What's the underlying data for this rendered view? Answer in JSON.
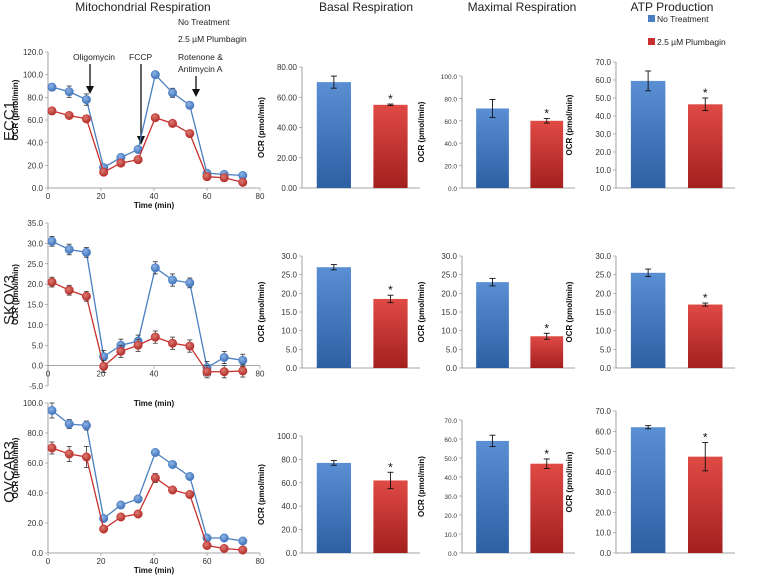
{
  "column_titles": {
    "mito": "Mitochondrial Respiration",
    "basal": "Basal Respiration",
    "maximal": "Maximal Respiration",
    "atp": "ATP Production"
  },
  "legend": {
    "no_treatment": "No Treatment",
    "plumbagin": "2.5 µM Plumbagin",
    "colors": {
      "no_treatment": "#4a7fc1",
      "plumbagin": "#c8302f"
    }
  },
  "annotations": {
    "no_treatment": "No Treatment",
    "plumbagin": "2.5 µM Plumbagin",
    "oligomycin": "Oligomycin",
    "fccp": "FCCP",
    "rotenone_line1": "Rotenone &",
    "rotenone_line2": "Antimycin A"
  },
  "significance_marker": "*",
  "chart_data": [
    {
      "type": "line",
      "row": "ECC1",
      "title": "Mitochondrial Respiration",
      "xlabel": "Time (min)",
      "ylabel": "OCR (pmol/min)",
      "xlim": [
        0,
        80
      ],
      "ylim": [
        0,
        120
      ],
      "xticks": [
        "0",
        "20",
        "40",
        "60",
        "80"
      ],
      "yticks": [
        "0.0",
        "20.0",
        "40.0",
        "60.0",
        "80.0",
        "100.0",
        "120.0"
      ],
      "x": [
        1.5,
        8,
        14.5,
        21,
        27.5,
        34,
        40.5,
        47,
        53.5,
        60,
        66.5,
        73.5
      ],
      "series": [
        {
          "name": "No Treatment",
          "values": [
            89,
            85,
            78,
            18,
            27,
            34,
            100,
            84,
            73,
            13,
            12,
            11
          ],
          "err": [
            3,
            5,
            5,
            2,
            2,
            2,
            2,
            4,
            3,
            2,
            2,
            2
          ]
        },
        {
          "name": "2.5 µM Plumbagin",
          "values": [
            68,
            64,
            61,
            14,
            22,
            25,
            62,
            57,
            48,
            10,
            9,
            5
          ],
          "err": [
            2,
            2,
            2,
            2,
            2,
            2,
            2,
            2,
            3,
            2,
            2,
            2
          ]
        }
      ]
    },
    {
      "type": "bar",
      "row": "ECC1",
      "title": "Basal Respiration",
      "ylabel": "OCR (pmol/min)",
      "ylim": [
        0,
        80
      ],
      "yticks": [
        "0.00",
        "20.00",
        "40.00",
        "60.00",
        "80.00"
      ],
      "categories": [
        "No Treatment",
        "2.5 µM Plumbagin"
      ],
      "values": [
        70,
        55
      ],
      "err": [
        4,
        0.5
      ],
      "significant": [
        false,
        true
      ]
    },
    {
      "type": "bar",
      "row": "ECC1",
      "title": "Maximal Respiration",
      "ylabel": "OCR (pmol/min)",
      "ylim": [
        0,
        100
      ],
      "yticks": [
        "0.0",
        "20.0",
        "40.0",
        "60.0",
        "80.0",
        "100.0"
      ],
      "categories": [
        "No Treatment",
        "2.5 µM Plumbagin"
      ],
      "values": [
        71,
        60
      ],
      "err": [
        8,
        2
      ],
      "significant": [
        false,
        true
      ]
    },
    {
      "type": "bar",
      "row": "ECC1",
      "title": "ATP Production",
      "ylabel": "OCR (pmol/min)",
      "ylim": [
        0,
        70
      ],
      "yticks": [
        "0.0",
        "10.0",
        "20.0",
        "30.0",
        "40.0",
        "50.0",
        "60.0",
        "70.0"
      ],
      "categories": [
        "No Treatment",
        "2.5 µM Plumbagin"
      ],
      "values": [
        59.5,
        46.5
      ],
      "err": [
        5.5,
        3.5
      ],
      "significant": [
        false,
        true
      ]
    },
    {
      "type": "line",
      "row": "SKOV3",
      "xlabel": "Time (min)",
      "ylabel": "OCR (pmol/min)",
      "xlim": [
        0,
        80
      ],
      "ylim": [
        -5,
        35
      ],
      "xticks": [
        "0",
        "20",
        "40",
        "60",
        "80"
      ],
      "yticks": [
        "-5.0",
        "0.0",
        "5.0",
        "10.0",
        "15.0",
        "20.0",
        "25.0",
        "30.0",
        "35.0"
      ],
      "x": [
        1.5,
        8,
        14.5,
        21,
        27.5,
        34,
        40.5,
        47,
        53.5,
        60,
        66.5,
        73.5
      ],
      "series": [
        {
          "name": "No Treatment",
          "values": [
            30.5,
            28.5,
            27.8,
            2.2,
            5,
            6,
            24,
            21,
            20.3,
            -0.5,
            2,
            1.3
          ],
          "err": [
            1.2,
            1.3,
            1.2,
            1.5,
            1.5,
            1.5,
            1.5,
            1.5,
            1.2,
            1.5,
            1.5,
            1.5
          ]
        },
        {
          "name": "2.5 µM Plumbagin",
          "values": [
            20.5,
            18.5,
            17,
            -0.2,
            3.5,
            5,
            7,
            5.5,
            4.8,
            -1.5,
            -1.5,
            -1.3
          ],
          "err": [
            1.2,
            1.2,
            1.2,
            1.5,
            1.5,
            1.5,
            1.5,
            1.5,
            1.5,
            1.5,
            1.5,
            1.5
          ]
        }
      ]
    },
    {
      "type": "bar",
      "row": "SKOV3",
      "ylabel": "OCR (pmol/min)",
      "ylim": [
        0,
        30
      ],
      "yticks": [
        "0.0",
        "5.0",
        "10.0",
        "15.0",
        "20.0",
        "25.0",
        "30.0"
      ],
      "categories": [
        "No Treatment",
        "2.5 µM Plumbagin"
      ],
      "values": [
        27,
        18.5
      ],
      "err": [
        0.7,
        1
      ],
      "significant": [
        false,
        true
      ]
    },
    {
      "type": "bar",
      "row": "SKOV3",
      "ylabel": "OCR (pmol/min)",
      "ylim": [
        0,
        30
      ],
      "yticks": [
        "0.0",
        "5.0",
        "10.0",
        "15.0",
        "20.0",
        "25.0",
        "30.0"
      ],
      "categories": [
        "No Treatment",
        "2.5 µM Plumbagin"
      ],
      "values": [
        23,
        8.5
      ],
      "err": [
        1,
        0.8
      ],
      "significant": [
        false,
        true
      ]
    },
    {
      "type": "bar",
      "row": "SKOV3",
      "ylabel": "OCR (pmol/min)",
      "ylim": [
        0,
        30
      ],
      "yticks": [
        "0.0",
        "5.0",
        "10.0",
        "15.0",
        "20.0",
        "25.0",
        "30.0"
      ],
      "categories": [
        "No Treatment",
        "2.5 µM Plumbagin"
      ],
      "values": [
        25.5,
        17
      ],
      "err": [
        1,
        0.4
      ],
      "significant": [
        false,
        true
      ]
    },
    {
      "type": "line",
      "row": "OVCAR3",
      "xlabel": "Time (min)",
      "ylabel": "OCR (pmol/min)",
      "xlim": [
        0,
        80
      ],
      "ylim": [
        0,
        100
      ],
      "xticks": [
        "0",
        "20",
        "40",
        "60",
        "80"
      ],
      "yticks": [
        "0.0",
        "20.0",
        "40.0",
        "60.0",
        "80.0",
        "100.0"
      ],
      "x": [
        1.5,
        8,
        14.5,
        21,
        27.5,
        34,
        40.5,
        47,
        53.5,
        60,
        66.5,
        73.5
      ],
      "series": [
        {
          "name": "No Treatment",
          "values": [
            95,
            86,
            85,
            23,
            32,
            36,
            67,
            59,
            51,
            10,
            10,
            8
          ],
          "err": [
            5,
            3,
            3,
            2,
            2,
            2,
            2,
            2,
            2,
            2,
            2,
            2
          ]
        },
        {
          "name": "2.5 µM Plumbagin",
          "values": [
            70,
            66,
            64,
            16,
            24,
            26,
            50,
            42,
            39,
            5,
            3,
            2
          ],
          "err": [
            4,
            5,
            7,
            2,
            2,
            2,
            3,
            2,
            2,
            2,
            2,
            2
          ]
        }
      ]
    },
    {
      "type": "bar",
      "row": "OVCAR3",
      "ylabel": "OCR (pmol/min)",
      "ylim": [
        0,
        100
      ],
      "yticks": [
        "0.0",
        "20.0",
        "40.0",
        "60.0",
        "80.0",
        "100.0"
      ],
      "categories": [
        "No Treatment",
        "2.5 µM Plumbagin"
      ],
      "values": [
        77,
        62
      ],
      "err": [
        2,
        7
      ],
      "significant": [
        false,
        true
      ]
    },
    {
      "type": "bar",
      "row": "OVCAR3",
      "ylabel": "OCR (pmol/min)",
      "ylim": [
        0,
        70
      ],
      "yticks": [
        "0.0",
        "10.0",
        "20.0",
        "30.0",
        "40.0",
        "50.0",
        "60.0",
        "70.0"
      ],
      "categories": [
        "No Treatment",
        "2.5 µM Plumbagin"
      ],
      "values": [
        59,
        47
      ],
      "err": [
        3,
        2.5
      ],
      "significant": [
        false,
        true
      ]
    },
    {
      "type": "bar",
      "row": "OVCAR3",
      "ylabel": "OCR (pmol/min)",
      "ylim": [
        0,
        70
      ],
      "yticks": [
        "0.0",
        "10.0",
        "20.0",
        "30.0",
        "40.0",
        "50.0",
        "60.0",
        "70.0"
      ],
      "categories": [
        "No Treatment",
        "2.5 µM Plumbagin"
      ],
      "values": [
        62,
        47.5
      ],
      "err": [
        0.8,
        7
      ],
      "significant": [
        false,
        true
      ]
    }
  ]
}
